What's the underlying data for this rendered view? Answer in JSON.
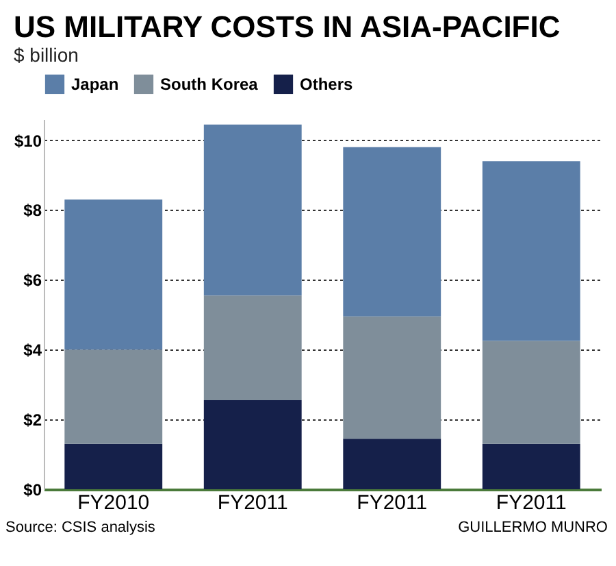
{
  "chart_data": {
    "type": "bar",
    "title": "US MILITARY COSTS IN ASIA-PACIFIC",
    "subtitle": "$ billion",
    "categories": [
      "FY2010",
      "FY2011",
      "FY2011",
      "FY2011"
    ],
    "stacked": true,
    "series": [
      {
        "name": "Others",
        "color": "#15204a",
        "values": [
          1.3,
          2.55,
          1.45,
          1.3
        ]
      },
      {
        "name": "South Korea",
        "color": "#7f8e9a",
        "values": [
          2.7,
          3.0,
          3.5,
          2.95
        ]
      },
      {
        "name": "Japan",
        "color": "#5b7ea8",
        "values": [
          4.3,
          4.9,
          4.85,
          5.15
        ]
      }
    ],
    "ylim": [
      0,
      10.6
    ],
    "yticks": [
      {
        "value": 0,
        "label": "$0"
      },
      {
        "value": 2,
        "label": "$2"
      },
      {
        "value": 4,
        "label": "$4"
      },
      {
        "value": 6,
        "label": "$6"
      },
      {
        "value": 8,
        "label": "$8"
      },
      {
        "value": 10,
        "label": "$10"
      }
    ],
    "grid": "y",
    "legend": "top left",
    "annotations": [
      "Source: CSIS analysis",
      "GUILLERMO MUNRO"
    ]
  }
}
